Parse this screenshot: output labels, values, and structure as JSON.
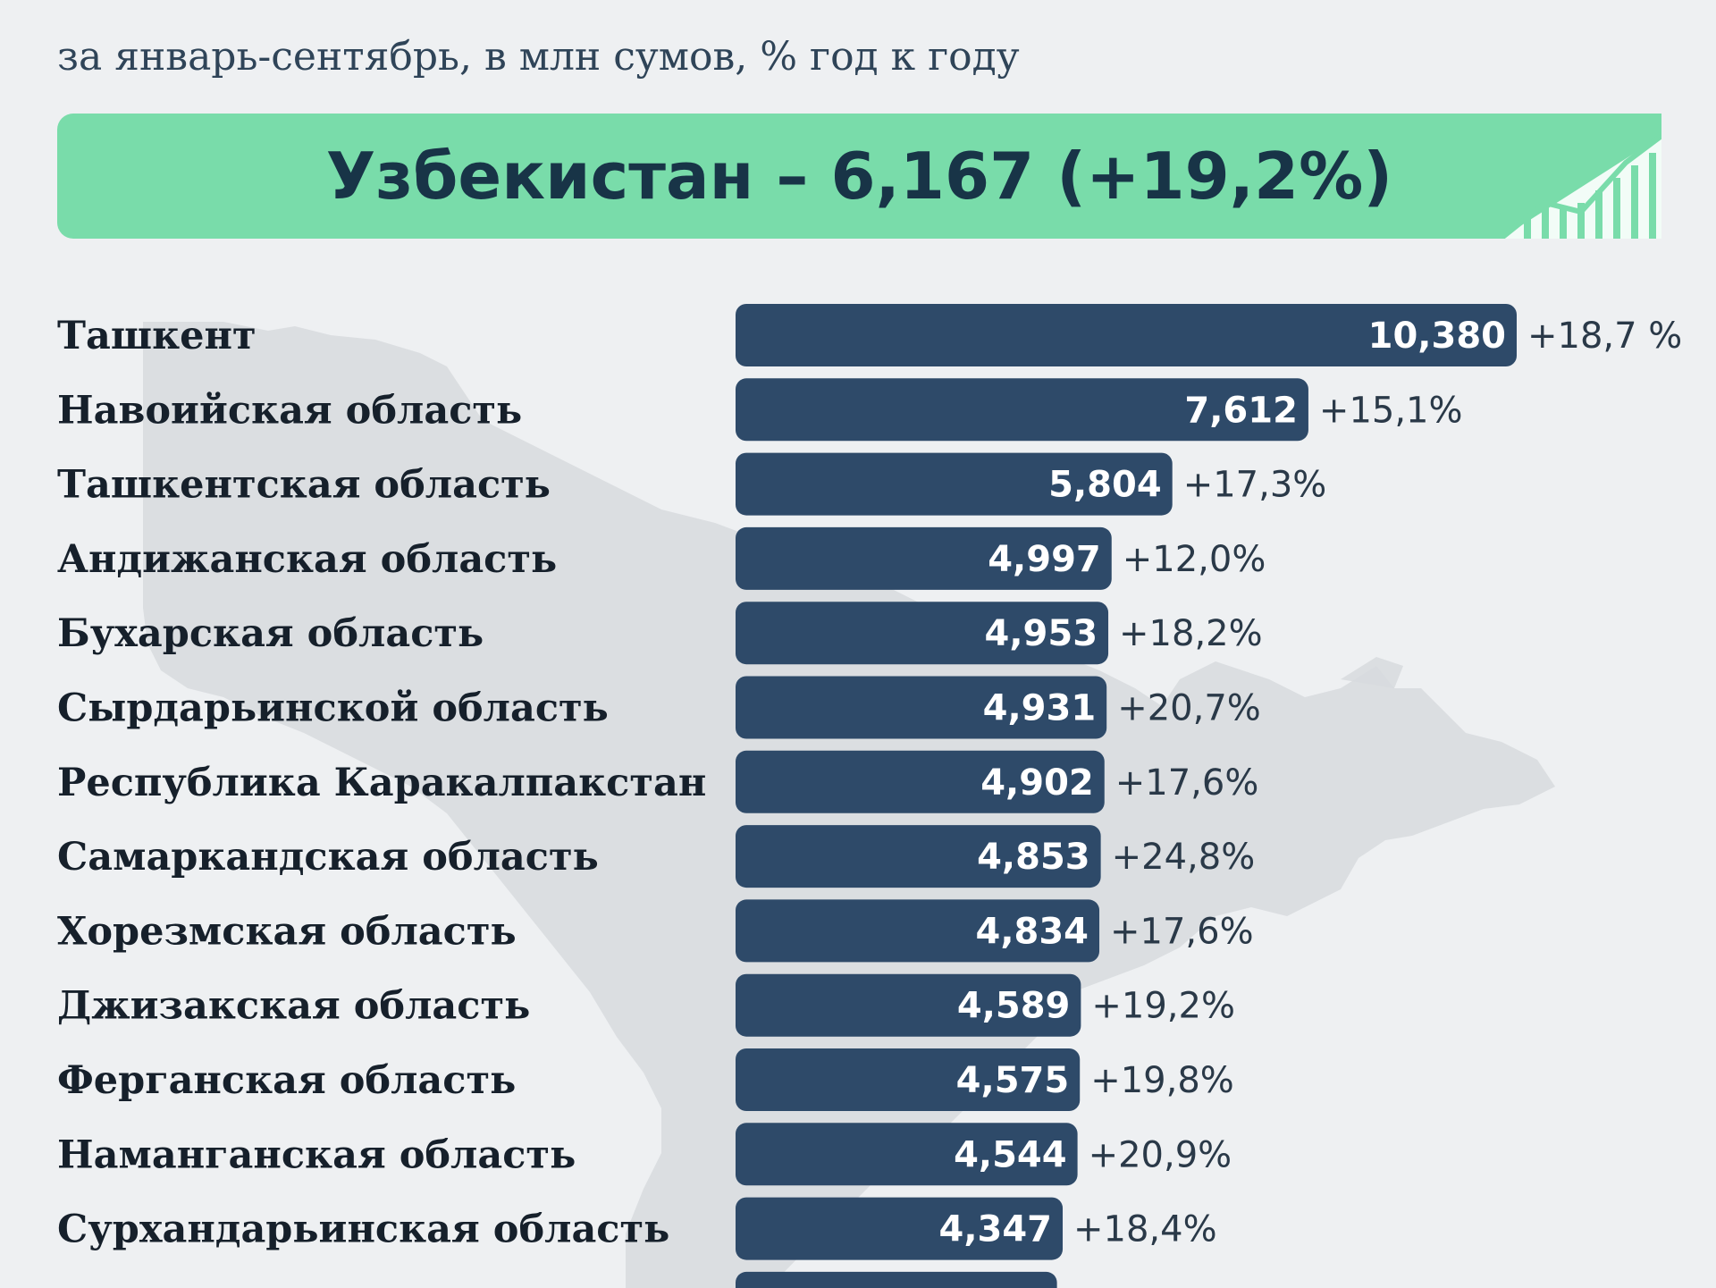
{
  "subtitle": "за январь-сентябрь, в млн сумов, % год к году",
  "hero": {
    "text": "Узбекистан – 6,167 (+19,2%)"
  },
  "colors": {
    "background": "#eef0f2",
    "banner": "#79dcaa",
    "bar": "#2e4a69",
    "text_dark": "#16202b"
  },
  "icons": [
    "growth-chart-icon",
    "uzbekistan-map-silhouette"
  ],
  "chart_data": {
    "type": "bar",
    "orientation": "horizontal",
    "categories": [
      "Ташкент",
      "Навоийская область",
      "Ташкентская область",
      "Андижанская область",
      "Бухарская область",
      "Сырдарьинской область",
      "Республика Каракалпакстан",
      "Самаркандская область",
      "Хорезмская область",
      "Джизакская область",
      "Ферганская область",
      "Наманганская область",
      "Сурхандарьинская область"
    ],
    "values": [
      10380,
      7612,
      5804,
      4997,
      4953,
      4931,
      4902,
      4853,
      4834,
      4589,
      4575,
      4544,
      4347
    ],
    "value_labels": [
      "10,380",
      "7,612",
      "5,804",
      "4,997",
      "4,953",
      "4,931",
      "4,902",
      "4,853",
      "4,834",
      "4,589",
      "4,575",
      "4,544",
      "4,347"
    ],
    "change_labels": [
      "+18,7 %",
      "+15,1%",
      "+17,3%",
      "+12,0%",
      "+18,2%",
      "+20,7%",
      "+17,6%",
      "+24,8%",
      "+17,6%",
      "+19,2%",
      "+19,8%",
      "+20,9%",
      "+18,4%"
    ],
    "partial_next_row": {
      "value": 4271
    },
    "xlim": [
      0,
      10380
    ],
    "grid": false,
    "legend": "none",
    "title": "",
    "xlabel": "",
    "ylabel": ""
  }
}
